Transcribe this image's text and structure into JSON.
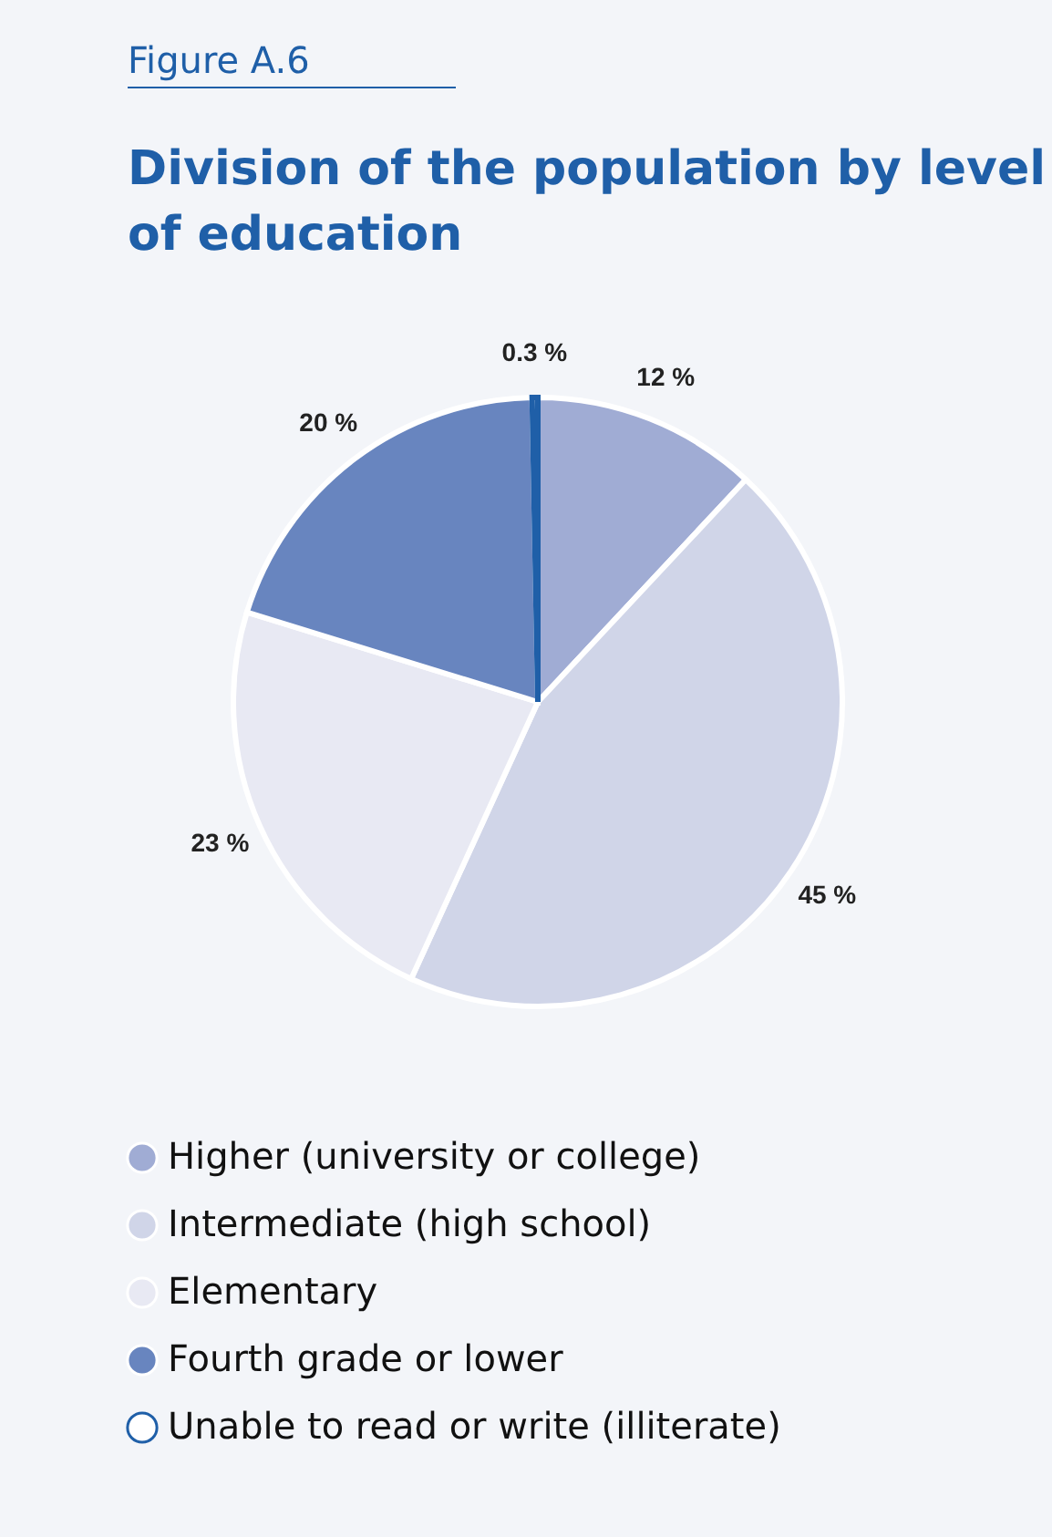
{
  "chart_data": {
    "type": "pie",
    "title": "Division of the population by level of education",
    "annotations": [
      "Figure A.6"
    ],
    "categories": [
      "Higher (university or college)",
      "Intermediate (high school)",
      "Elementary",
      "Fourth grade or lower",
      "Unable to read or write (illiterate)"
    ],
    "values": [
      12,
      45,
      23,
      20,
      0.3
    ],
    "colors": [
      "#a0acd4",
      "#d0d5e8",
      "#e8e9f3",
      "#6885bf",
      "#ffffff"
    ],
    "value_labels": [
      "12 %",
      "45 %",
      "23 %",
      "20 %",
      "0.3 %"
    ],
    "legend": "bottom"
  }
}
